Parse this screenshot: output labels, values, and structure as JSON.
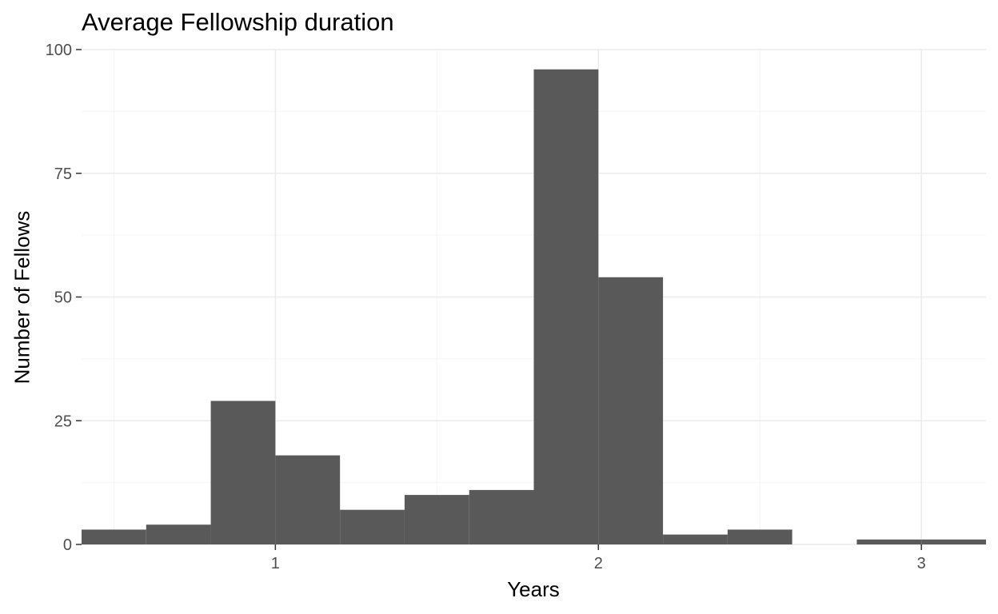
{
  "chart_data": {
    "type": "bar",
    "title": "Average Fellowship duration",
    "xlabel": "Years",
    "ylabel": "Number of Fellows",
    "xlim": [
      0.4,
      3.2
    ],
    "ylim": [
      0,
      100
    ],
    "x_ticks": [
      1,
      2,
      3
    ],
    "y_ticks": [
      0,
      25,
      50,
      75,
      100
    ],
    "bin_width": 0.2,
    "bins": [
      {
        "start": 0.4,
        "end": 0.6,
        "count": 3
      },
      {
        "start": 0.6,
        "end": 0.8,
        "count": 4
      },
      {
        "start": 0.8,
        "end": 1.0,
        "count": 29
      },
      {
        "start": 1.0,
        "end": 1.2,
        "count": 18
      },
      {
        "start": 1.2,
        "end": 1.4,
        "count": 7
      },
      {
        "start": 1.4,
        "end": 1.6,
        "count": 10
      },
      {
        "start": 1.6,
        "end": 1.8,
        "count": 11
      },
      {
        "start": 1.8,
        "end": 2.0,
        "count": 96
      },
      {
        "start": 2.0,
        "end": 2.2,
        "count": 54
      },
      {
        "start": 2.2,
        "end": 2.4,
        "count": 2
      },
      {
        "start": 2.4,
        "end": 2.6,
        "count": 3
      },
      {
        "start": 2.6,
        "end": 2.8,
        "count": 0
      },
      {
        "start": 2.8,
        "end": 3.0,
        "count": 1
      },
      {
        "start": 3.0,
        "end": 3.2,
        "count": 1
      }
    ],
    "grid": true,
    "bar_color": "#595959",
    "grid_color": "#ebebeb"
  }
}
